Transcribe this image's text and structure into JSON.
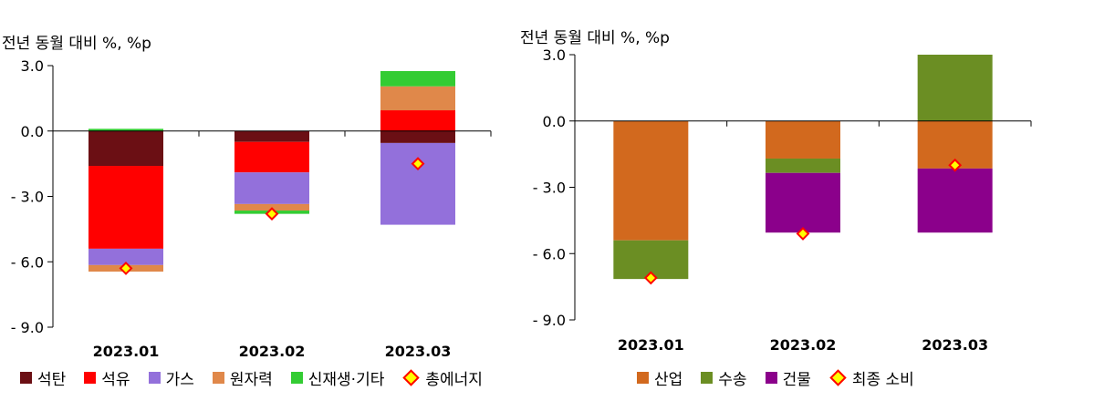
{
  "chart_data": [
    {
      "type": "bar",
      "stacked": true,
      "unit_label": "전년 동월 대비 %, %p",
      "categories": [
        "2023.01",
        "2023.02",
        "2023.03"
      ],
      "ylim": [
        -9.0,
        3.0
      ],
      "yticks": [
        "3.0",
        "0.0",
        "- 3.0",
        "- 6.0",
        "- 9.0"
      ],
      "ytick_values": [
        3.0,
        0.0,
        -3.0,
        -6.0,
        -9.0
      ],
      "series": [
        {
          "name": "석탄",
          "color": "#6b0f14",
          "values": [
            -1.6,
            -0.5,
            -0.55
          ]
        },
        {
          "name": "석유",
          "color": "#ff0000",
          "values": [
            -3.8,
            -1.4,
            0.95
          ]
        },
        {
          "name": "가스",
          "color": "#9370db",
          "values": [
            -0.75,
            -1.45,
            -3.75
          ]
        },
        {
          "name": "원자력",
          "color": "#e0884a",
          "values": [
            -0.3,
            -0.3,
            1.1
          ]
        },
        {
          "name": "신재생·기타",
          "color": "#33cc33",
          "values": [
            0.1,
            -0.15,
            0.7
          ]
        }
      ],
      "total": {
        "name": "총에너지",
        "values": [
          -6.3,
          -3.8,
          -1.5
        ]
      }
    },
    {
      "type": "bar",
      "stacked": true,
      "unit_label": "전년 동월 대비 %, %p",
      "categories": [
        "2023.01",
        "2023.02",
        "2023.03"
      ],
      "ylim": [
        -9.0,
        3.0
      ],
      "yticks": [
        "3.0",
        "0.0",
        "- 3.0",
        "- 6.0",
        "- 9.0"
      ],
      "ytick_values": [
        3.0,
        0.0,
        -3.0,
        -6.0,
        -9.0
      ],
      "series": [
        {
          "name": "산업",
          "color": "#d2691e",
          "values": [
            -5.4,
            -1.7,
            -2.15
          ]
        },
        {
          "name": "수송",
          "color": "#6b8e23",
          "values": [
            -1.75,
            -0.65,
            3.0
          ]
        },
        {
          "name": "건물",
          "color": "#8b008b",
          "values": [
            0,
            -2.7,
            -2.9
          ]
        }
      ],
      "total": {
        "name": "최종 소비",
        "values": [
          -7.1,
          -5.1,
          -2.0
        ]
      }
    }
  ]
}
